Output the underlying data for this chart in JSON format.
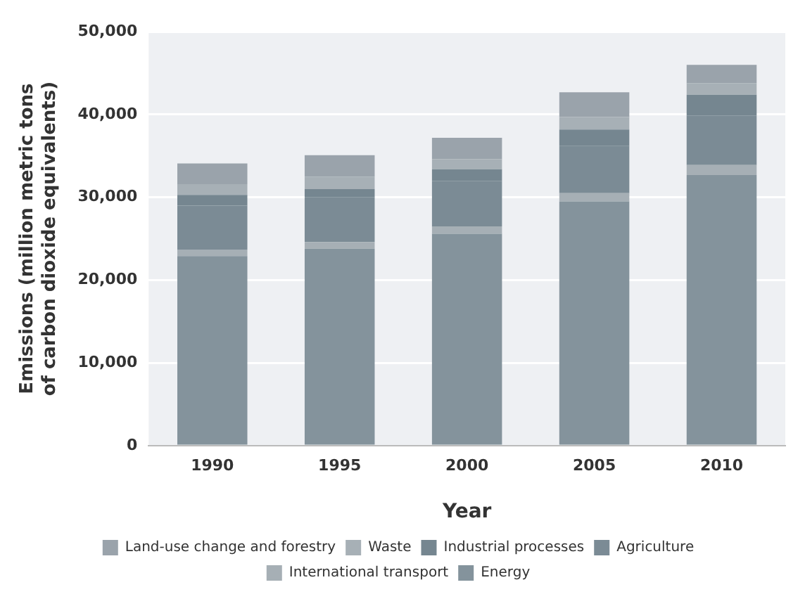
{
  "chart_data": {
    "type": "bar",
    "stacked": true,
    "xlabel": "Year",
    "ylabel": "Emissions (million metric tons of carbon dioxide equivalents)",
    "categories": [
      "1990",
      "1995",
      "2000",
      "2005",
      "2010"
    ],
    "series": [
      {
        "name": "Energy",
        "color": "#84939c",
        "values": [
          22900,
          23800,
          25600,
          29500,
          32700
        ]
      },
      {
        "name": "International transport",
        "color": "#a6afb5",
        "values": [
          800,
          800,
          900,
          1000,
          1200
        ]
      },
      {
        "name": "Agriculture",
        "color": "#7b8b95",
        "values": [
          5300,
          5400,
          5500,
          5700,
          6000
        ]
      },
      {
        "name": "Industrial processes",
        "color": "#758690",
        "values": [
          1300,
          1000,
          1400,
          2000,
          2500
        ]
      },
      {
        "name": "Waste",
        "color": "#a7b0b6",
        "values": [
          1300,
          1500,
          1200,
          1500,
          1400
        ]
      },
      {
        "name": "Land-use change and forestry",
        "color": "#9aa3ab",
        "values": [
          2500,
          2600,
          2600,
          3000,
          2200
        ]
      }
    ],
    "ylim": [
      0,
      50000
    ],
    "yticks": [
      0,
      {
        "value": 10000,
        "label": "10,000"
      },
      {
        "value": 20000,
        "label": "20,000"
      },
      {
        "value": 30000,
        "label": "30,000"
      },
      {
        "value": 40000,
        "label": "40,000"
      },
      {
        "value": 50000,
        "label": "50,000"
      }
    ],
    "grid": "y",
    "legend": "bottom"
  }
}
